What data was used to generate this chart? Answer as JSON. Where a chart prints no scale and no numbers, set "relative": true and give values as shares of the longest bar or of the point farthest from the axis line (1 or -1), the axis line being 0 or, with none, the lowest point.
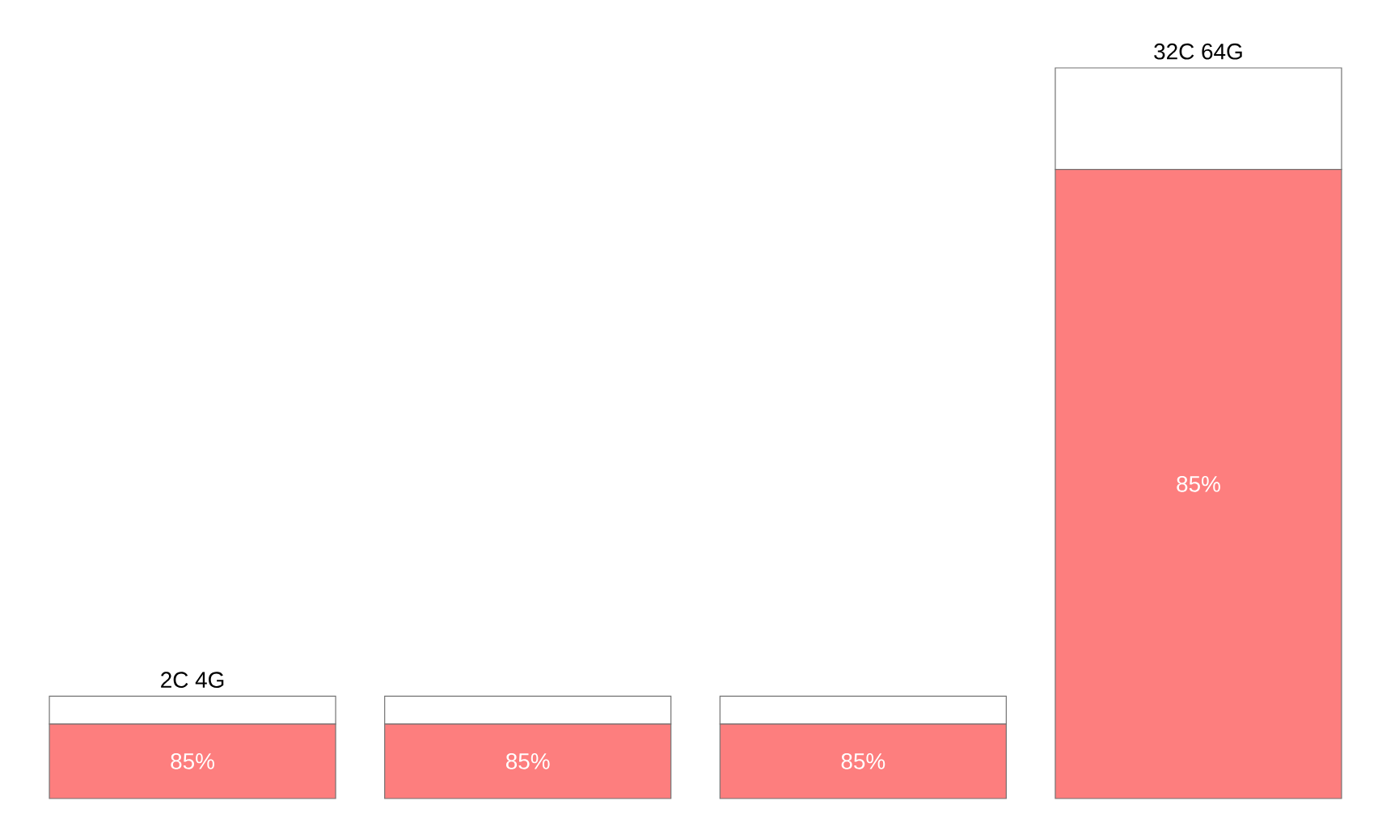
{
  "chart_data": {
    "type": "bar",
    "stacked": true,
    "relative": true,
    "categories": [
      "2C 4G",
      null,
      null,
      "32C 64G"
    ],
    "series": [
      {
        "color": "#fd7e7e",
        "values": [
          0.102,
          0.102,
          0.102,
          0.861
        ]
      },
      {
        "color": "#ffffff",
        "values": [
          0.038,
          0.038,
          0.038,
          0.139
        ]
      }
    ],
    "annotations": [
      "85%",
      "85%",
      "85%",
      "85%"
    ]
  }
}
